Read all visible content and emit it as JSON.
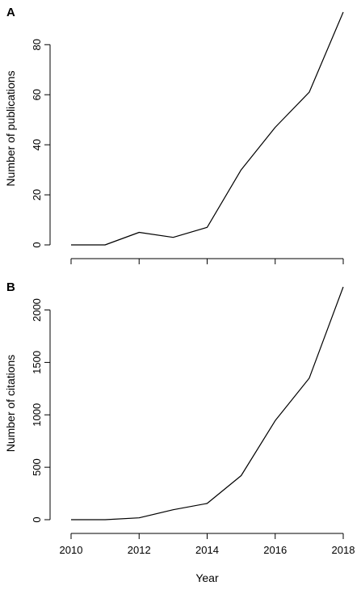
{
  "chart_data": [
    {
      "type": "line",
      "panel_label": "A",
      "x": [
        2010,
        2011,
        2012,
        2013,
        2014,
        2015,
        2016,
        2017,
        2018
      ],
      "series": [
        {
          "values": [
            0,
            0,
            5,
            3,
            7,
            30,
            47,
            61,
            93
          ]
        }
      ],
      "xlabel": "",
      "ylabel": "Number of publications",
      "xlim": [
        2010,
        2018
      ],
      "ylim": [
        0,
        93
      ],
      "y_ticks": [
        0,
        20,
        40,
        60,
        80
      ],
      "x_ticks": [
        2010,
        2012,
        2014,
        2016,
        2018
      ],
      "x_tick_labels_shown": false,
      "grid": false
    },
    {
      "type": "line",
      "panel_label": "B",
      "x": [
        2010,
        2011,
        2012,
        2013,
        2014,
        2015,
        2016,
        2017,
        2018
      ],
      "series": [
        {
          "values": [
            0,
            0,
            18,
            95,
            155,
            420,
            945,
            1350,
            2220
          ]
        }
      ],
      "xlabel": "Year",
      "ylabel": "Number of citations",
      "xlim": [
        2010,
        2018
      ],
      "ylim": [
        0,
        2220
      ],
      "y_ticks": [
        0,
        500,
        1000,
        1500,
        2000
      ],
      "x_ticks": [
        2010,
        2012,
        2014,
        2016,
        2018
      ],
      "x_tick_labels_shown": true,
      "grid": false
    }
  ]
}
